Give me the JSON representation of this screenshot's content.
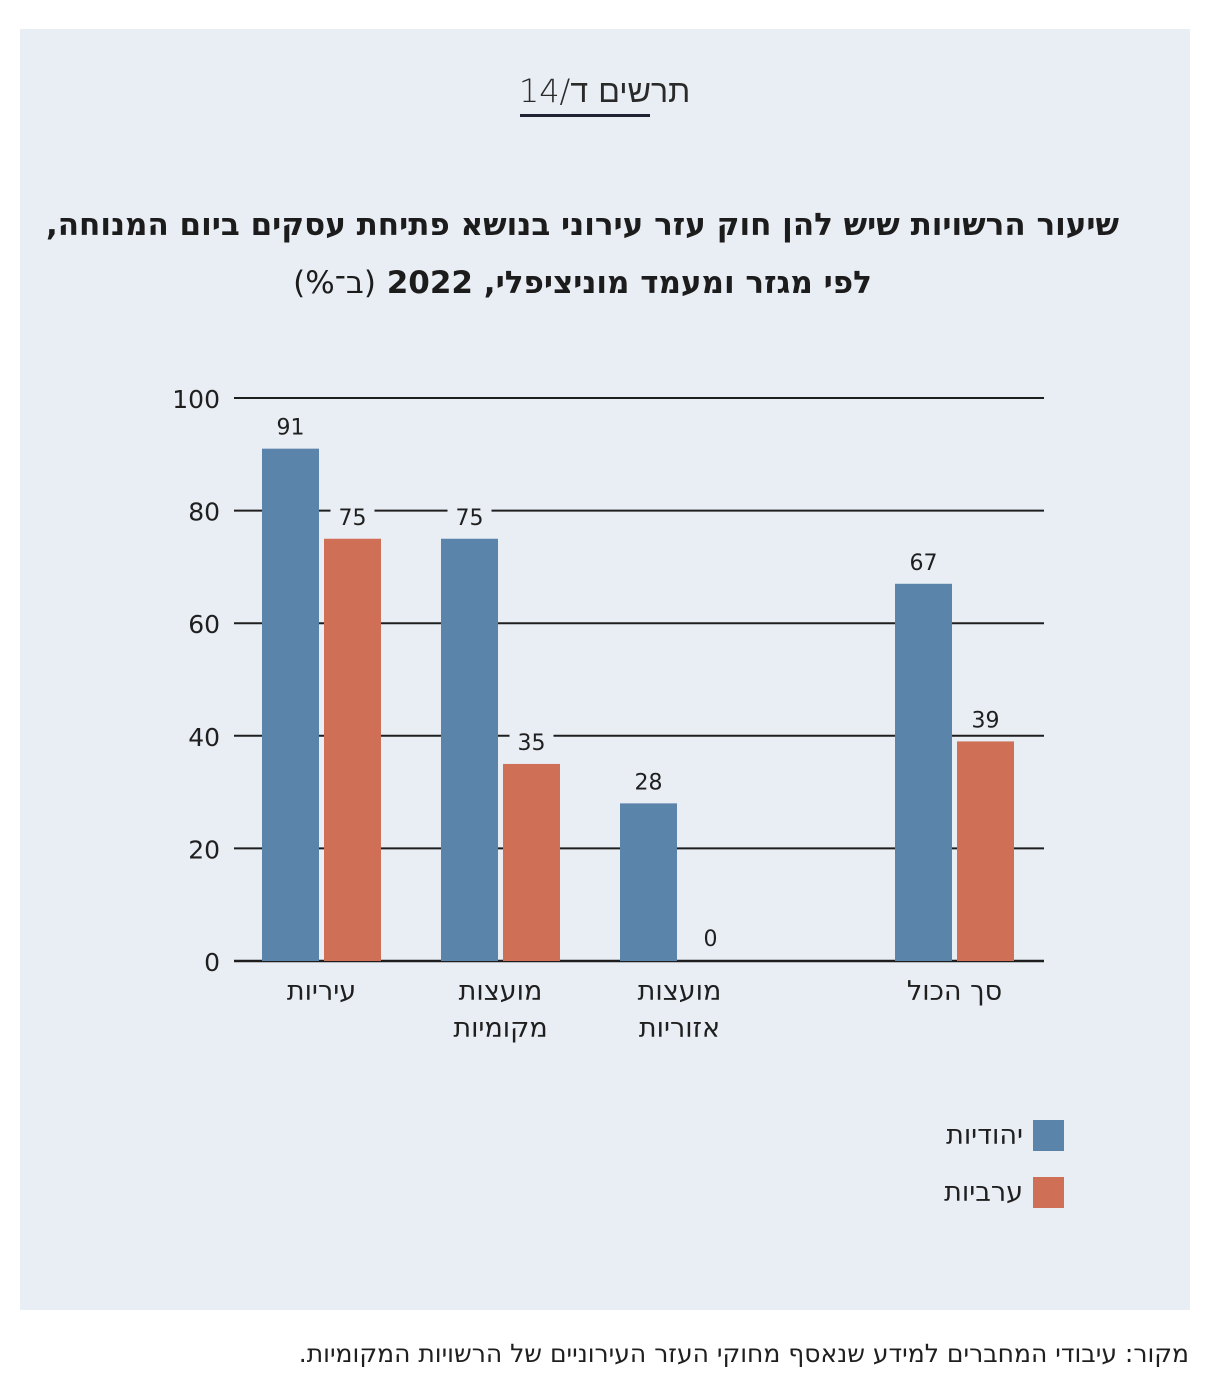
{
  "figure": {
    "label": "תרשים ד/14",
    "title_main": "שיעור הרשויות שיש להן חוק עזר עירוני בנושא פתיחת עסקים ביום המנוחה, לפי מגזר ומעמד מוניציפלי, 2022",
    "title_unit": "(ב־%)",
    "source": "מקור: עיבודי המחברים למידע שנאסף מחוקי העזר העירוניים של הרשויות המקומיות."
  },
  "chart_data": {
    "type": "bar",
    "title": "שיעור הרשויות שיש להן חוק עזר עירוני בנושא פתיחת עסקים ביום המנוחה, לפי מגזר ומעמד מוניציפלי, 2022 (ב־%)",
    "categories": [
      [
        "עיריות"
      ],
      [
        "מועצות",
        "מקומיות"
      ],
      [
        "מועצות",
        "אזוריות"
      ],
      [
        "סך הכול"
      ]
    ],
    "series": [
      {
        "name": "יהודיות",
        "color": "#5b84ab",
        "values": [
          91,
          75,
          28,
          67
        ]
      },
      {
        "name": "ערביות",
        "color": "#cf6f55",
        "values": [
          75,
          35,
          0,
          39
        ]
      }
    ],
    "ylim": [
      0,
      100
    ],
    "yticks": [
      "0",
      "20",
      "40",
      "60",
      "80",
      "100"
    ],
    "grid": true,
    "legend_position": "bottom-right"
  }
}
